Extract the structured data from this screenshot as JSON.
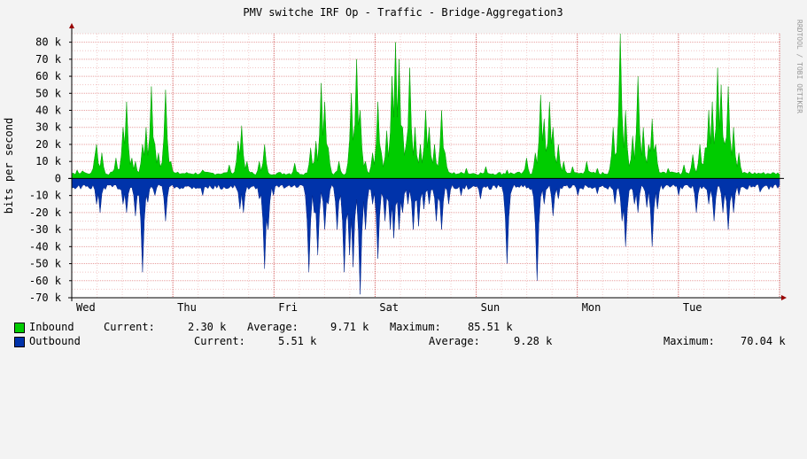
{
  "window": {
    "title": "PMV switche IRF Op - Traffic - Bridge-Aggregation3",
    "side_label": "RRDTOOL / TOBI OETIKER"
  },
  "colors": {
    "background": "#f3f3f3",
    "plot_bg": "#ffffff",
    "grid": "#e8a0a0",
    "inbound": "#00cc00",
    "outbound": "#0033aa",
    "axis": "#000000"
  },
  "chart_data": {
    "type": "area",
    "title": "PMV switche IRF Op - Traffic - Bridge-Aggregation3",
    "ylabel": "bits per second",
    "xlabel": "",
    "ylim": [
      -70000,
      85000
    ],
    "grid": true,
    "x_ticks": [
      "Wed",
      "Thu",
      "Fri",
      "Sat",
      "Sun",
      "Mon",
      "Tue"
    ],
    "y_ticks": [
      "80 k",
      "70 k",
      "60 k",
      "50 k",
      "40 k",
      "30 k",
      "20 k",
      "10 k",
      "0",
      "-10 k",
      "-20 k",
      "-30 k",
      "-40 k",
      "-50 k",
      "-60 k",
      "-70 k"
    ],
    "y_tick_values": [
      80000,
      70000,
      60000,
      50000,
      40000,
      30000,
      20000,
      10000,
      0,
      -10000,
      -20000,
      -30000,
      -40000,
      -50000,
      -60000,
      -70000
    ],
    "x_range_days": [
      0,
      7
    ],
    "series": [
      {
        "name": "Inbound",
        "baseline": 3000,
        "spikes": [
          {
            "day": 0.06,
            "value": 5000
          },
          {
            "day": 0.1,
            "value": 4500
          },
          {
            "day": 0.22,
            "value": 13000
          },
          {
            "day": 0.25,
            "value": 20000
          },
          {
            "day": 0.29,
            "value": 15000
          },
          {
            "day": 0.44,
            "value": 12000
          },
          {
            "day": 0.5,
            "value": 30000
          },
          {
            "day": 0.55,
            "value": 45000
          },
          {
            "day": 0.6,
            "value": 12000
          },
          {
            "day": 0.63,
            "value": 10000
          },
          {
            "day": 0.7,
            "value": 20000
          },
          {
            "day": 0.74,
            "value": 30000
          },
          {
            "day": 0.78,
            "value": 54000
          },
          {
            "day": 0.82,
            "value": 20000
          },
          {
            "day": 0.86,
            "value": 15000
          },
          {
            "day": 0.93,
            "value": 52000
          },
          {
            "day": 0.98,
            "value": 10000
          },
          {
            "day": 1.3,
            "value": 5000
          },
          {
            "day": 1.55,
            "value": 8000
          },
          {
            "day": 1.64,
            "value": 22000
          },
          {
            "day": 1.68,
            "value": 31000
          },
          {
            "day": 1.74,
            "value": 10000
          },
          {
            "day": 1.85,
            "value": 10000
          },
          {
            "day": 1.9,
            "value": 20000
          },
          {
            "day": 2.2,
            "value": 9000
          },
          {
            "day": 2.36,
            "value": 18000
          },
          {
            "day": 2.42,
            "value": 22000
          },
          {
            "day": 2.46,
            "value": 56000
          },
          {
            "day": 2.5,
            "value": 45000
          },
          {
            "day": 2.54,
            "value": 18000
          },
          {
            "day": 2.65,
            "value": 10000
          },
          {
            "day": 2.76,
            "value": 50000
          },
          {
            "day": 2.82,
            "value": 70000
          },
          {
            "day": 2.86,
            "value": 40000
          },
          {
            "day": 2.9,
            "value": 10000
          },
          {
            "day": 2.98,
            "value": 15000
          },
          {
            "day": 3.02,
            "value": 45000
          },
          {
            "day": 3.06,
            "value": 15000
          },
          {
            "day": 3.12,
            "value": 28000
          },
          {
            "day": 3.17,
            "value": 60000
          },
          {
            "day": 3.2,
            "value": 80000
          },
          {
            "day": 3.23,
            "value": 70000
          },
          {
            "day": 3.27,
            "value": 30000
          },
          {
            "day": 3.31,
            "value": 20000
          },
          {
            "day": 3.35,
            "value": 65000
          },
          {
            "day": 3.4,
            "value": 30000
          },
          {
            "day": 3.44,
            "value": 20000
          },
          {
            "day": 3.5,
            "value": 40000
          },
          {
            "day": 3.54,
            "value": 30000
          },
          {
            "day": 3.59,
            "value": 20000
          },
          {
            "day": 3.66,
            "value": 40000
          },
          {
            "day": 3.7,
            "value": 15000
          },
          {
            "day": 3.9,
            "value": 6000
          },
          {
            "day": 4.1,
            "value": 7000
          },
          {
            "day": 4.3,
            "value": 5000
          },
          {
            "day": 4.5,
            "value": 12000
          },
          {
            "day": 4.58,
            "value": 15000
          },
          {
            "day": 4.63,
            "value": 49000
          },
          {
            "day": 4.68,
            "value": 35000
          },
          {
            "day": 4.72,
            "value": 45000
          },
          {
            "day": 4.76,
            "value": 30000
          },
          {
            "day": 4.82,
            "value": 20000
          },
          {
            "day": 4.86,
            "value": 10000
          },
          {
            "day": 4.95,
            "value": 7000
          },
          {
            "day": 5.1,
            "value": 10000
          },
          {
            "day": 5.2,
            "value": 6000
          },
          {
            "day": 5.35,
            "value": 30000
          },
          {
            "day": 5.43,
            "value": 85000
          },
          {
            "day": 5.48,
            "value": 40000
          },
          {
            "day": 5.55,
            "value": 25000
          },
          {
            "day": 5.6,
            "value": 60000
          },
          {
            "day": 5.66,
            "value": 30000
          },
          {
            "day": 5.7,
            "value": 20000
          },
          {
            "day": 5.74,
            "value": 35000
          },
          {
            "day": 5.78,
            "value": 20000
          },
          {
            "day": 5.9,
            "value": 6000
          },
          {
            "day": 6.05,
            "value": 8000
          },
          {
            "day": 6.15,
            "value": 14000
          },
          {
            "day": 6.22,
            "value": 20000
          },
          {
            "day": 6.27,
            "value": 18000
          },
          {
            "day": 6.3,
            "value": 40000
          },
          {
            "day": 6.34,
            "value": 45000
          },
          {
            "day": 6.38,
            "value": 65000
          },
          {
            "day": 6.42,
            "value": 55000
          },
          {
            "day": 6.45,
            "value": 20000
          },
          {
            "day": 6.5,
            "value": 54000
          },
          {
            "day": 6.55,
            "value": 30000
          },
          {
            "day": 6.6,
            "value": 15000
          },
          {
            "day": 6.7,
            "value": 4000
          },
          {
            "day": 6.85,
            "value": 3500
          },
          {
            "day": 6.95,
            "value": 3000
          }
        ]
      },
      {
        "name": "Outbound",
        "baseline": -5000,
        "spikes": [
          {
            "day": 0.24,
            "value": -15000
          },
          {
            "day": 0.28,
            "value": -20000
          },
          {
            "day": 0.5,
            "value": -15000
          },
          {
            "day": 0.55,
            "value": -20000
          },
          {
            "day": 0.63,
            "value": -22000
          },
          {
            "day": 0.7,
            "value": -55000
          },
          {
            "day": 0.76,
            "value": -14000
          },
          {
            "day": 0.82,
            "value": -10000
          },
          {
            "day": 0.93,
            "value": -25000
          },
          {
            "day": 1.3,
            "value": -10000
          },
          {
            "day": 1.66,
            "value": -18000
          },
          {
            "day": 1.7,
            "value": -20000
          },
          {
            "day": 1.85,
            "value": -12000
          },
          {
            "day": 1.9,
            "value": -53000
          },
          {
            "day": 1.94,
            "value": -30000
          },
          {
            "day": 2.0,
            "value": -10000
          },
          {
            "day": 2.35,
            "value": -55000
          },
          {
            "day": 2.39,
            "value": -20000
          },
          {
            "day": 2.44,
            "value": -45000
          },
          {
            "day": 2.5,
            "value": -30000
          },
          {
            "day": 2.54,
            "value": -15000
          },
          {
            "day": 2.62,
            "value": -30000
          },
          {
            "day": 2.7,
            "value": -55000
          },
          {
            "day": 2.74,
            "value": -45000
          },
          {
            "day": 2.78,
            "value": -52000
          },
          {
            "day": 2.85,
            "value": -68000
          },
          {
            "day": 2.9,
            "value": -30000
          },
          {
            "day": 2.98,
            "value": -15000
          },
          {
            "day": 3.03,
            "value": -47000
          },
          {
            "day": 3.1,
            "value": -25000
          },
          {
            "day": 3.15,
            "value": -30000
          },
          {
            "day": 3.19,
            "value": -35000
          },
          {
            "day": 3.23,
            "value": -30000
          },
          {
            "day": 3.28,
            "value": -20000
          },
          {
            "day": 3.32,
            "value": -15000
          },
          {
            "day": 3.38,
            "value": -30000
          },
          {
            "day": 3.43,
            "value": -28000
          },
          {
            "day": 3.48,
            "value": -18000
          },
          {
            "day": 3.54,
            "value": -15000
          },
          {
            "day": 3.6,
            "value": -25000
          },
          {
            "day": 3.66,
            "value": -30000
          },
          {
            "day": 3.72,
            "value": -15000
          },
          {
            "day": 3.85,
            "value": -10000
          },
          {
            "day": 4.05,
            "value": -12000
          },
          {
            "day": 4.3,
            "value": -50000
          },
          {
            "day": 4.32,
            "value": -20000
          },
          {
            "day": 4.6,
            "value": -60000
          },
          {
            "day": 4.68,
            "value": -15000
          },
          {
            "day": 4.76,
            "value": -22000
          },
          {
            "day": 4.82,
            "value": -12000
          },
          {
            "day": 5.0,
            "value": -10000
          },
          {
            "day": 5.2,
            "value": -9000
          },
          {
            "day": 5.38,
            "value": -15000
          },
          {
            "day": 5.44,
            "value": -25000
          },
          {
            "day": 5.48,
            "value": -40000
          },
          {
            "day": 5.56,
            "value": -15000
          },
          {
            "day": 5.6,
            "value": -20000
          },
          {
            "day": 5.68,
            "value": -17000
          },
          {
            "day": 5.74,
            "value": -40000
          },
          {
            "day": 5.8,
            "value": -18000
          },
          {
            "day": 6.0,
            "value": -10000
          },
          {
            "day": 6.18,
            "value": -20000
          },
          {
            "day": 6.3,
            "value": -15000
          },
          {
            "day": 6.36,
            "value": -25000
          },
          {
            "day": 6.44,
            "value": -20000
          },
          {
            "day": 6.5,
            "value": -30000
          },
          {
            "day": 6.55,
            "value": -20000
          },
          {
            "day": 6.6,
            "value": -10000
          },
          {
            "day": 6.8,
            "value": -8000
          }
        ]
      }
    ]
  },
  "legend": {
    "rows": [
      {
        "label": "Inbound",
        "current_label": "Current:",
        "current": "2.30 k",
        "average_label": "Average:",
        "average": "9.71 k",
        "maximum_label": "Maximum:",
        "maximum": "85.51 k"
      },
      {
        "label": "Outbound",
        "current_label": "Current:",
        "current": "5.51 k",
        "average_label": "Average:",
        "average": "9.28 k",
        "maximum_label": "Maximum:",
        "maximum": "70.04 k"
      }
    ]
  }
}
